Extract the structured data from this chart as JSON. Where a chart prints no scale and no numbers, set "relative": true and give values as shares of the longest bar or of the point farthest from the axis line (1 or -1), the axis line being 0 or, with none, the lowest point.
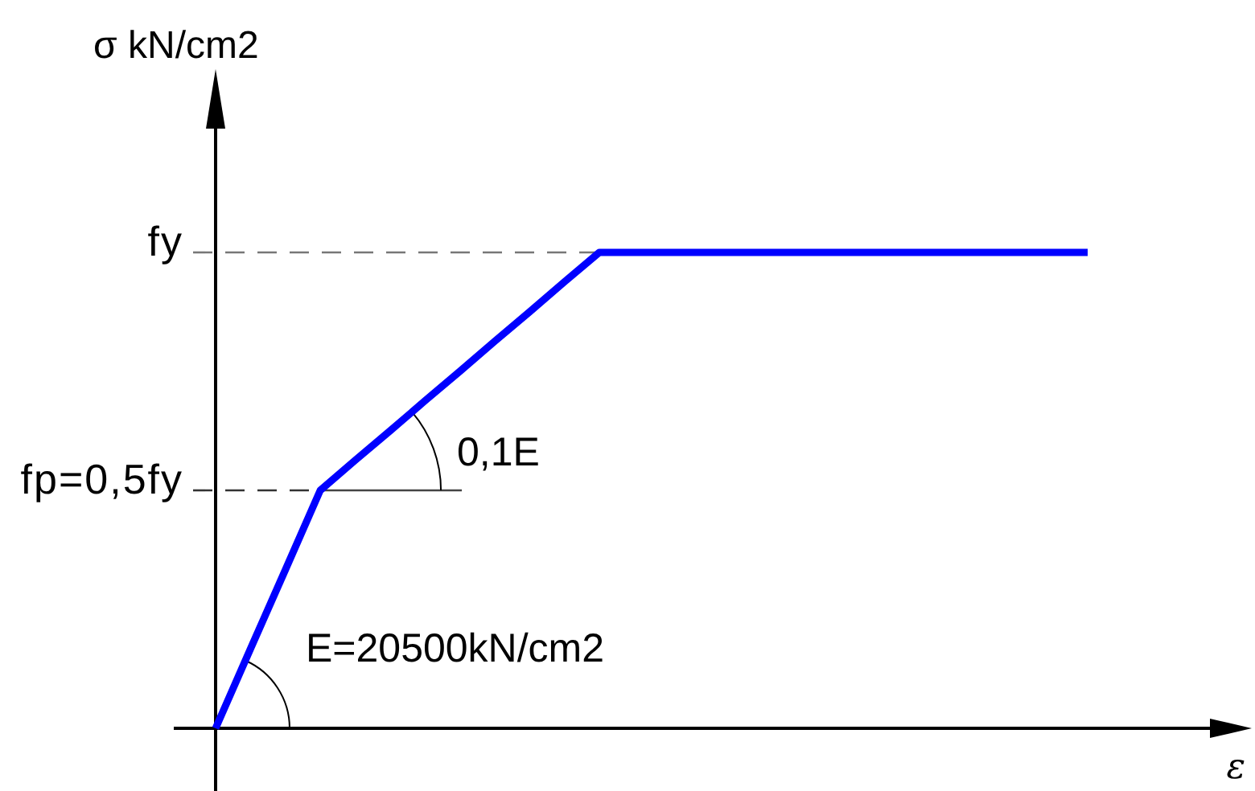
{
  "chart_data": {
    "type": "line",
    "relative": true,
    "categories": [
      null,
      null,
      null,
      null,
      null,
      null,
      null,
      null,
      null,
      null,
      null,
      null,
      null,
      null,
      null,
      null,
      null,
      null,
      null,
      null,
      null,
      null,
      null,
      null,
      null,
      null
    ],
    "series": [
      {
        "color": "#0000ff",
        "values": [
          0,
          0.167,
          0.333,
          0.5,
          0.563,
          0.625,
          0.688,
          0.75,
          0.813,
          0.875,
          0.938,
          1,
          1,
          1,
          1,
          1,
          1,
          1,
          1,
          1,
          1,
          1,
          1,
          1,
          1,
          1
        ]
      }
    ],
    "ylabel": "σ kN/cm2",
    "xlabel": "ε",
    "line_style": "solid",
    "ref_lines": [
      {
        "axis": "y",
        "value": 1,
        "label": "fy",
        "color": "#777777",
        "line_style": "dashed"
      },
      {
        "axis": "y",
        "value": 0.5,
        "label": "fp=0,5fy",
        "color": "#333333",
        "line_style": "dashed"
      }
    ],
    "annotations": [
      "E=20500kN/cm2",
      "0,1E"
    ]
  }
}
